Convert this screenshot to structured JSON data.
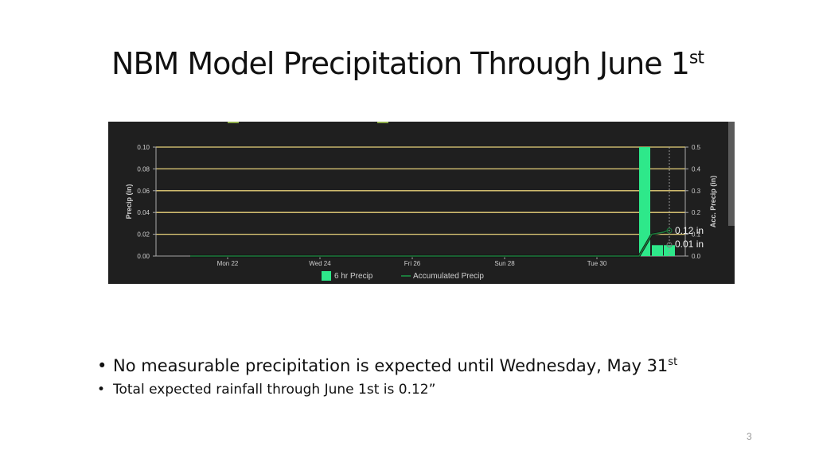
{
  "slide": {
    "title_main": "NBM Model Precipitation Through June 1",
    "title_sup": "st",
    "bullet1_main": "No measurable precipitation is expected until Wednesday, May 31",
    "bullet1_sup": "st",
    "bullet2": "Total expected rainfall through June 1st is 0.12”",
    "page_number": "3"
  },
  "chart_data": {
    "type": "bar",
    "ylabel": "Precip (in)",
    "y2label": "Acc. Precip (in)",
    "ylim": [
      0,
      0.1
    ],
    "y2lim": [
      0,
      0.5
    ],
    "y_ticks": [
      "0.00",
      "0.02",
      "0.04",
      "0.06",
      "0.08",
      "0.10"
    ],
    "y2_ticks": [
      "0.0",
      "0.1",
      "0.2",
      "0.3",
      "0.4",
      "0.5"
    ],
    "x_ticks": [
      "Mon 22",
      "Wed 24",
      "Fri 26",
      "Sun 28",
      "Tue 30"
    ],
    "grid": true,
    "legend_position": "bottom",
    "series": [
      {
        "name": "6 hr Precip",
        "type": "bar",
        "color": "#2ee88a",
        "x": [
          "May 31 00Z",
          "May 31 06Z",
          "May 31 12Z"
        ],
        "values": [
          0.1,
          0.01,
          0.01
        ]
      },
      {
        "name": "Accumulated Precip",
        "type": "line",
        "color": "#1c7a3c",
        "x": [
          "May 21",
          "May 30",
          "May 31 00Z",
          "May 31 06Z",
          "May 31 12Z"
        ],
        "values": [
          0.0,
          0.0,
          0.1,
          0.11,
          0.12
        ]
      }
    ],
    "annotations": [
      "0.12 in",
      "0.01 in"
    ],
    "colors": {
      "background": "#1f1f1f",
      "grid": "#e8d27a",
      "axis_text": "#cfcfcf"
    }
  }
}
